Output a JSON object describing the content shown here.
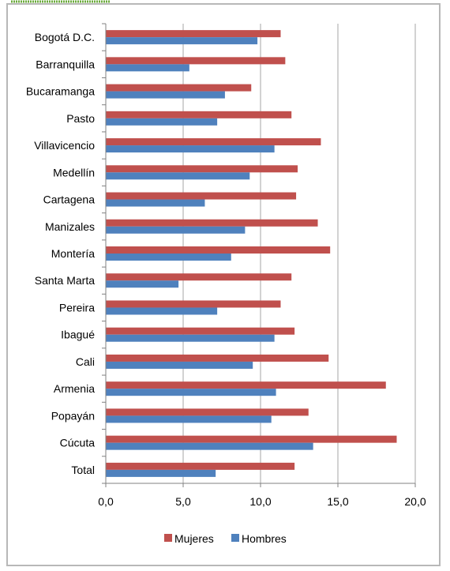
{
  "chart_data": {
    "type": "bar",
    "orientation": "horizontal",
    "categories": [
      "Bogotá D.C.",
      "Barranquilla",
      "Bucaramanga",
      "Pasto",
      "Villavicencio",
      "Medellín",
      "Cartagena",
      "Manizales",
      "Montería",
      "Santa Marta",
      "Pereira",
      "Ibagué",
      "Cali",
      "Armenia",
      "Popayán",
      "Cúcuta",
      "Total"
    ],
    "series": [
      {
        "name": "Mujeres",
        "color": "#c0504d",
        "values": [
          11.3,
          11.6,
          9.4,
          12.0,
          13.9,
          12.4,
          12.3,
          13.7,
          14.5,
          12.0,
          11.3,
          12.2,
          14.4,
          18.1,
          13.1,
          18.8,
          12.2
        ]
      },
      {
        "name": "Hombres",
        "color": "#4f81bd",
        "values": [
          9.8,
          5.4,
          7.7,
          7.2,
          10.9,
          9.3,
          6.4,
          9.0,
          8.1,
          4.7,
          7.2,
          10.9,
          9.5,
          11.0,
          10.7,
          13.4,
          7.1
        ]
      }
    ],
    "xlim": [
      0,
      20
    ],
    "xticks": [
      "0,0",
      "5,0",
      "10,0",
      "15,0",
      "20,0"
    ],
    "grid": "vertical",
    "legend_position": "bottom"
  }
}
